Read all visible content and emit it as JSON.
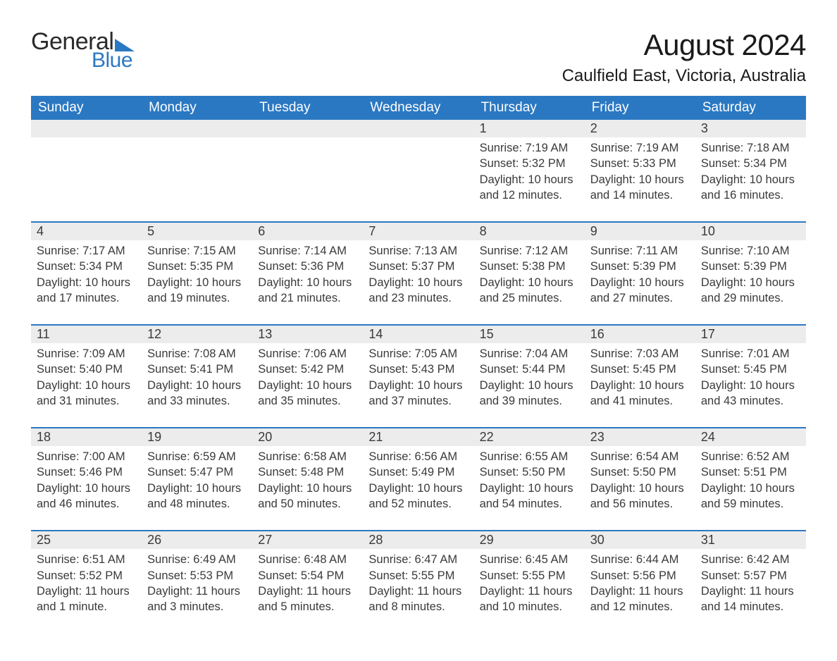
{
  "colors": {
    "brand_blue": "#2b78c2",
    "header_bg": "#2b78c2",
    "header_text": "#ffffff",
    "daynum_bg": "#ececec",
    "text": "#3a3a3a",
    "row_divider": "#2b78c2",
    "page_bg": "#ffffff"
  },
  "typography": {
    "base_font": "Arial, Helvetica, sans-serif",
    "month_title_size_pt": 32,
    "location_size_pt": 18,
    "dayheader_size_pt": 14,
    "body_size_pt": 12
  },
  "logo": {
    "word1": "General",
    "word2": "Blue"
  },
  "title": "August 2024",
  "location": "Caulfield East, Victoria, Australia",
  "day_headers": [
    "Sunday",
    "Monday",
    "Tuesday",
    "Wednesday",
    "Thursday",
    "Friday",
    "Saturday"
  ],
  "weeks": [
    [
      {
        "empty": true
      },
      {
        "empty": true
      },
      {
        "empty": true
      },
      {
        "empty": true
      },
      {
        "num": "1",
        "sunrise": "Sunrise: 7:19 AM",
        "sunset": "Sunset: 5:32 PM",
        "daylight": "Daylight: 10 hours and 12 minutes."
      },
      {
        "num": "2",
        "sunrise": "Sunrise: 7:19 AM",
        "sunset": "Sunset: 5:33 PM",
        "daylight": "Daylight: 10 hours and 14 minutes."
      },
      {
        "num": "3",
        "sunrise": "Sunrise: 7:18 AM",
        "sunset": "Sunset: 5:34 PM",
        "daylight": "Daylight: 10 hours and 16 minutes."
      }
    ],
    [
      {
        "num": "4",
        "sunrise": "Sunrise: 7:17 AM",
        "sunset": "Sunset: 5:34 PM",
        "daylight": "Daylight: 10 hours and 17 minutes."
      },
      {
        "num": "5",
        "sunrise": "Sunrise: 7:15 AM",
        "sunset": "Sunset: 5:35 PM",
        "daylight": "Daylight: 10 hours and 19 minutes."
      },
      {
        "num": "6",
        "sunrise": "Sunrise: 7:14 AM",
        "sunset": "Sunset: 5:36 PM",
        "daylight": "Daylight: 10 hours and 21 minutes."
      },
      {
        "num": "7",
        "sunrise": "Sunrise: 7:13 AM",
        "sunset": "Sunset: 5:37 PM",
        "daylight": "Daylight: 10 hours and 23 minutes."
      },
      {
        "num": "8",
        "sunrise": "Sunrise: 7:12 AM",
        "sunset": "Sunset: 5:38 PM",
        "daylight": "Daylight: 10 hours and 25 minutes."
      },
      {
        "num": "9",
        "sunrise": "Sunrise: 7:11 AM",
        "sunset": "Sunset: 5:39 PM",
        "daylight": "Daylight: 10 hours and 27 minutes."
      },
      {
        "num": "10",
        "sunrise": "Sunrise: 7:10 AM",
        "sunset": "Sunset: 5:39 PM",
        "daylight": "Daylight: 10 hours and 29 minutes."
      }
    ],
    [
      {
        "num": "11",
        "sunrise": "Sunrise: 7:09 AM",
        "sunset": "Sunset: 5:40 PM",
        "daylight": "Daylight: 10 hours and 31 minutes."
      },
      {
        "num": "12",
        "sunrise": "Sunrise: 7:08 AM",
        "sunset": "Sunset: 5:41 PM",
        "daylight": "Daylight: 10 hours and 33 minutes."
      },
      {
        "num": "13",
        "sunrise": "Sunrise: 7:06 AM",
        "sunset": "Sunset: 5:42 PM",
        "daylight": "Daylight: 10 hours and 35 minutes."
      },
      {
        "num": "14",
        "sunrise": "Sunrise: 7:05 AM",
        "sunset": "Sunset: 5:43 PM",
        "daylight": "Daylight: 10 hours and 37 minutes."
      },
      {
        "num": "15",
        "sunrise": "Sunrise: 7:04 AM",
        "sunset": "Sunset: 5:44 PM",
        "daylight": "Daylight: 10 hours and 39 minutes."
      },
      {
        "num": "16",
        "sunrise": "Sunrise: 7:03 AM",
        "sunset": "Sunset: 5:45 PM",
        "daylight": "Daylight: 10 hours and 41 minutes."
      },
      {
        "num": "17",
        "sunrise": "Sunrise: 7:01 AM",
        "sunset": "Sunset: 5:45 PM",
        "daylight": "Daylight: 10 hours and 43 minutes."
      }
    ],
    [
      {
        "num": "18",
        "sunrise": "Sunrise: 7:00 AM",
        "sunset": "Sunset: 5:46 PM",
        "daylight": "Daylight: 10 hours and 46 minutes."
      },
      {
        "num": "19",
        "sunrise": "Sunrise: 6:59 AM",
        "sunset": "Sunset: 5:47 PM",
        "daylight": "Daylight: 10 hours and 48 minutes."
      },
      {
        "num": "20",
        "sunrise": "Sunrise: 6:58 AM",
        "sunset": "Sunset: 5:48 PM",
        "daylight": "Daylight: 10 hours and 50 minutes."
      },
      {
        "num": "21",
        "sunrise": "Sunrise: 6:56 AM",
        "sunset": "Sunset: 5:49 PM",
        "daylight": "Daylight: 10 hours and 52 minutes."
      },
      {
        "num": "22",
        "sunrise": "Sunrise: 6:55 AM",
        "sunset": "Sunset: 5:50 PM",
        "daylight": "Daylight: 10 hours and 54 minutes."
      },
      {
        "num": "23",
        "sunrise": "Sunrise: 6:54 AM",
        "sunset": "Sunset: 5:50 PM",
        "daylight": "Daylight: 10 hours and 56 minutes."
      },
      {
        "num": "24",
        "sunrise": "Sunrise: 6:52 AM",
        "sunset": "Sunset: 5:51 PM",
        "daylight": "Daylight: 10 hours and 59 minutes."
      }
    ],
    [
      {
        "num": "25",
        "sunrise": "Sunrise: 6:51 AM",
        "sunset": "Sunset: 5:52 PM",
        "daylight": "Daylight: 11 hours and 1 minute."
      },
      {
        "num": "26",
        "sunrise": "Sunrise: 6:49 AM",
        "sunset": "Sunset: 5:53 PM",
        "daylight": "Daylight: 11 hours and 3 minutes."
      },
      {
        "num": "27",
        "sunrise": "Sunrise: 6:48 AM",
        "sunset": "Sunset: 5:54 PM",
        "daylight": "Daylight: 11 hours and 5 minutes."
      },
      {
        "num": "28",
        "sunrise": "Sunrise: 6:47 AM",
        "sunset": "Sunset: 5:55 PM",
        "daylight": "Daylight: 11 hours and 8 minutes."
      },
      {
        "num": "29",
        "sunrise": "Sunrise: 6:45 AM",
        "sunset": "Sunset: 5:55 PM",
        "daylight": "Daylight: 11 hours and 10 minutes."
      },
      {
        "num": "30",
        "sunrise": "Sunrise: 6:44 AM",
        "sunset": "Sunset: 5:56 PM",
        "daylight": "Daylight: 11 hours and 12 minutes."
      },
      {
        "num": "31",
        "sunrise": "Sunrise: 6:42 AM",
        "sunset": "Sunset: 5:57 PM",
        "daylight": "Daylight: 11 hours and 14 minutes."
      }
    ]
  ]
}
